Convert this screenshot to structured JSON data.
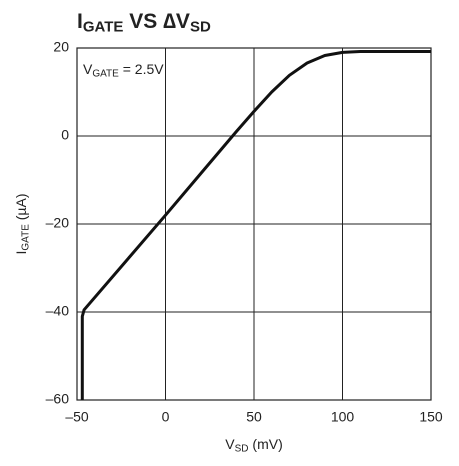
{
  "chart_data": {
    "type": "line",
    "title": [
      "I",
      "GATE",
      " VS ∆V",
      "SD"
    ],
    "annotation": [
      "V",
      "GATE",
      " = 2.5V"
    ],
    "xlabel": [
      "V",
      "SD",
      " (mV)"
    ],
    "ylabel": [
      "I",
      "GATE",
      " (µA)"
    ],
    "x": [
      -47,
      -47,
      -46,
      0,
      20,
      40,
      50,
      60,
      70,
      80,
      90,
      100,
      110,
      150
    ],
    "values": [
      -60,
      -41,
      -39.5,
      -18,
      -8.5,
      1,
      5.6,
      10,
      13.8,
      16.6,
      18.3,
      19,
      19.2,
      19.2
    ],
    "color": "#111111",
    "xlim": [
      -50,
      150
    ],
    "xticks": [
      {
        "value": -50,
        "label": "–50"
      },
      0,
      50,
      100,
      150
    ],
    "ylim": [
      -60,
      20
    ],
    "yticks": [
      {
        "value": -60,
        "label": "–60"
      },
      {
        "value": -40,
        "label": "–40"
      },
      {
        "value": -20,
        "label": "–20"
      },
      0,
      20
    ],
    "grid": true
  }
}
